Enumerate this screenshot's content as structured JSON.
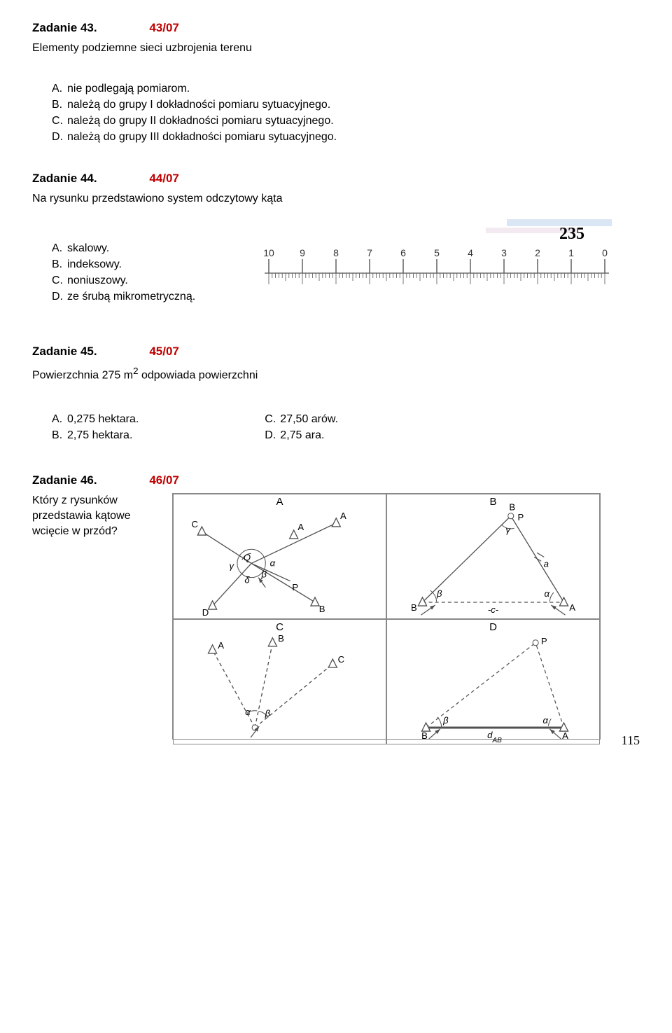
{
  "q43": {
    "title": "Zadanie 43.",
    "code": "43/07",
    "stem": "Elementy podziemne sieci uzbrojenia terenu",
    "opts": [
      "nie podlegają pomiarom.",
      "należą do grupy I dokładności pomiaru sytuacyjnego.",
      "należą do grupy II dokładności pomiaru sytuacyjnego.",
      "należą do grupy III dokładności pomiaru sytuacyjnego."
    ]
  },
  "q44": {
    "title": "Zadanie 44.",
    "code": "44/07",
    "stem": "Na rysunku przedstawiono system odczytowy kąta",
    "opts": [
      "skalowy.",
      "indeksowy.",
      "noniuszowy.",
      "ze śrubą mikrometryczną."
    ],
    "scale": {
      "reading_label": "235",
      "top_numbers": [
        "10",
        "9",
        "8",
        "7",
        "6",
        "5",
        "4",
        "3",
        "2",
        "1",
        "0"
      ],
      "tick_minor_count": 100,
      "colors": {
        "line": "#555",
        "text": "#333",
        "accent_blue": "#b7cdea"
      }
    }
  },
  "q45": {
    "title": "Zadanie 45.",
    "code": "45/07",
    "stem_prefix": "Powierzchnia 275 m",
    "stem_sup": "2",
    "stem_suffix": " odpowiada powierzchni",
    "left": [
      "0,275 hektara.",
      "2,75 hektara."
    ],
    "right": [
      "27,50 arów.",
      "2,75 ara."
    ]
  },
  "q46": {
    "title": "Zadanie 46.",
    "code": "46/07",
    "stem": "Który z rysunków przedstawia kątowe wcięcie w przód?",
    "cells": [
      "A",
      "B",
      "C",
      "D"
    ],
    "symbols": {
      "A": {
        "points": [
          "A",
          "B",
          "C",
          "D"
        ],
        "greek": [
          "α",
          "β",
          "γ",
          "δ"
        ],
        "center": "Q",
        "extra": "P"
      },
      "B": {
        "points": [
          "A",
          "B",
          "P"
        ],
        "greek": [
          "α",
          "β",
          "γ"
        ],
        "side_label": "a",
        "base_label": "-c-"
      },
      "C": {
        "points": [
          "A",
          "B",
          "C"
        ],
        "greek": [
          "α",
          "β"
        ]
      },
      "D": {
        "points": [
          "A",
          "B",
          "P"
        ],
        "greek": [
          "α",
          "β"
        ],
        "base_label": "d_AB"
      }
    },
    "diagram_colors": {
      "stroke": "#505050",
      "fill": "#ffffff"
    }
  },
  "letters": [
    "A.",
    "B.",
    "C.",
    "D."
  ],
  "page_number": "115",
  "colors": {
    "red": "#c00000",
    "text": "#000000",
    "grid": "#888888"
  }
}
